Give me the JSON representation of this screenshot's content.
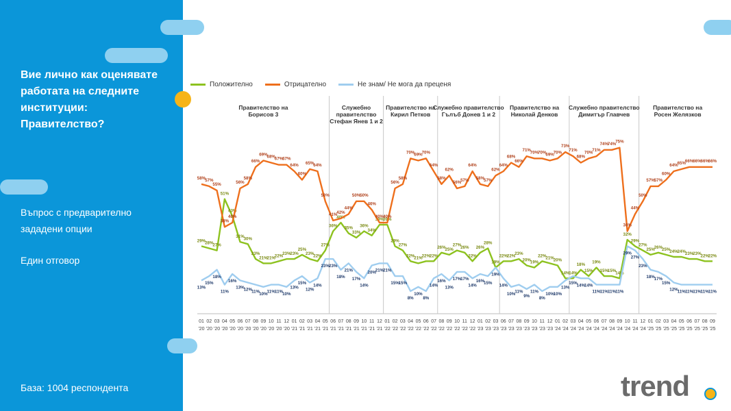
{
  "question": "Вие лично как оценявате работата на следните институции: Правителство?",
  "question_type": "Въпрос с предварително зададени опции",
  "answer_mode": "Един отговор",
  "base": "База:  1004 респондента",
  "logo_text": "trend",
  "colors": {
    "sidebar": "#0b96d9",
    "positive": "#8dc21f",
    "negative": "#ee6f1c",
    "dontknow": "#9fcdef"
  },
  "chart_data": {
    "type": "line",
    "x": [
      "01 '20",
      "02 '20",
      "03 '20",
      "04 '20",
      "05 '20",
      "06 '20",
      "07 '20",
      "08 '20",
      "09 '20",
      "10 '20",
      "11 '20",
      "12 '20",
      "01 '21",
      "02 '21",
      "03 '21",
      "04 '21",
      "05 '21",
      "06 '21",
      "07 '21",
      "08 '21",
      "09 '21",
      "10 '21",
      "11 '21",
      "12 '21",
      "01 '22",
      "02 '22",
      "03 '22",
      "04 '22",
      "05 '22",
      "06 '22",
      "07 '22",
      "08 '22",
      "09 '22",
      "10 '22",
      "11 '22",
      "12 '22",
      "01 '23",
      "02 '23",
      "03 '23",
      "06 '23",
      "07 '23",
      "08 '23",
      "09 '23",
      "10 '23",
      "11 '23",
      "12 '23",
      "01 '24",
      "02 '24",
      "03 '24",
      "04 '24",
      "05 '24",
      "06 '24",
      "07 '24",
      "08 '24",
      "09 '24",
      "10 '24",
      "11 '24",
      "12 '24",
      "01 '25",
      "02 '25",
      "03 '25",
      "04 '25",
      "05 '25",
      "06 '25",
      "07 '25",
      "08 '25",
      "09 '25"
    ],
    "series": [
      {
        "name": "Положително",
        "color": "#8dc21f",
        "values": [
          29,
          28,
          27,
          51,
          43,
          31,
          30,
          23,
          21,
          21,
          22,
          23,
          23,
          25,
          23,
          22,
          27,
          36,
          40,
          35,
          33,
          36,
          34,
          39,
          39,
          29,
          27,
          22,
          21,
          22,
          22,
          26,
          25,
          27,
          26,
          22,
          26,
          28,
          19,
          22,
          22,
          23,
          20,
          19,
          22,
          21,
          20,
          14,
          14,
          18,
          15,
          19,
          15,
          15,
          14,
          32,
          29,
          27,
          25,
          26,
          25,
          24,
          24,
          23,
          23,
          22,
          22
        ]
      },
      {
        "name": "Отрицателно",
        "color": "#ee6f1c",
        "values": [
          58,
          57,
          55,
          38,
          40,
          56,
          58,
          66,
          69,
          68,
          67,
          67,
          64,
          60,
          65,
          64,
          50,
          41,
          42,
          44,
          50,
          50,
          46,
          40,
          40,
          56,
          58,
          70,
          69,
          70,
          64,
          58,
          62,
          56,
          57,
          64,
          58,
          57,
          62,
          64,
          68,
          66,
          71,
          70,
          70,
          69,
          70,
          73,
          71,
          68,
          70,
          71,
          74,
          74,
          75,
          36,
          44,
          50,
          57,
          57,
          60,
          64,
          65,
          66,
          66,
          66,
          66
        ]
      },
      {
        "name": "Не знам/ Не мога да преценя",
        "color": "#9fcdef",
        "values": [
          13,
          15,
          18,
          11,
          16,
          13,
          12,
          11,
          10,
          11,
          11,
          10,
          13,
          15,
          12,
          14,
          23,
          23,
          18,
          21,
          17,
          14,
          20,
          21,
          21,
          15,
          15,
          8,
          10,
          8,
          14,
          16,
          13,
          17,
          17,
          14,
          16,
          15,
          19,
          14,
          10,
          11,
          9,
          11,
          8,
          10,
          10,
          13,
          15,
          14,
          14,
          11,
          11,
          11,
          11,
          29,
          27,
          23,
          18,
          17,
          15,
          12,
          11,
          11,
          11,
          11,
          11
        ]
      }
    ],
    "show_labels": [
      true,
      true,
      true,
      true,
      true,
      true,
      true,
      true,
      true,
      true,
      true,
      true,
      true,
      true,
      true,
      true,
      true,
      true,
      true,
      true,
      true,
      true,
      true,
      true,
      true,
      true,
      true,
      true,
      true,
      true,
      true,
      true,
      true,
      true,
      true,
      true,
      true,
      true,
      true,
      true,
      true,
      true,
      true,
      true,
      true,
      true,
      true,
      true,
      true,
      true,
      true,
      true,
      true,
      true,
      true,
      true,
      true,
      true,
      true,
      true,
      true,
      true,
      true,
      true,
      true,
      true,
      true
    ],
    "periods": [
      {
        "label": [
          "Правителство на",
          "Борисов 3"
        ],
        "start": 0,
        "end": 16
      },
      {
        "label": [
          "Служебно",
          "правителство",
          "Стефан Янев 1 и 2"
        ],
        "start": 17,
        "end": 23
      },
      {
        "label": [
          "Правителство на",
          "Кирил Петков"
        ],
        "start": 24,
        "end": 30
      },
      {
        "label": [
          "Служебно правителство",
          "Гълъб Донев 1 и 2"
        ],
        "start": 31,
        "end": 38
      },
      {
        "label": [
          "Правителство на",
          "Николай Денков"
        ],
        "start": 39,
        "end": 47
      },
      {
        "label": [
          "Служебно правителство",
          "Димитър Главчев"
        ],
        "start": 48,
        "end": 56
      },
      {
        "label": [
          "Правителство на",
          "Росен Желязков"
        ],
        "start": 57,
        "end": 66
      }
    ],
    "dividers": [
      16.5,
      23.5,
      30.5,
      38.5,
      47.5,
      56.5
    ],
    "ylim": [
      0,
      80
    ],
    "legend_position": "top-left"
  }
}
